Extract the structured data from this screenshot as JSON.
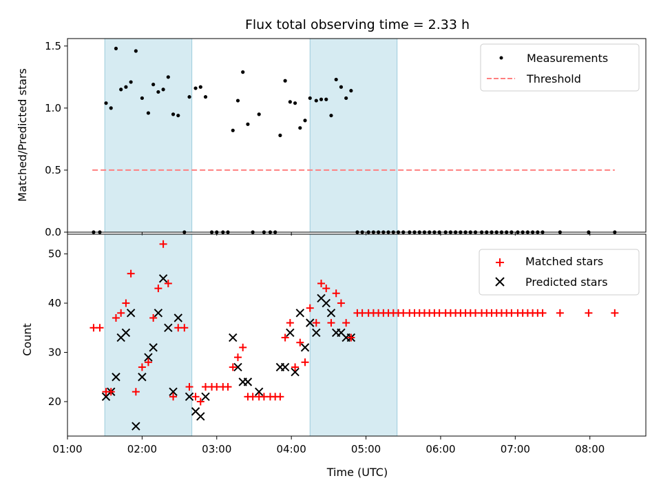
{
  "chart_data": [
    {
      "type": "scatter",
      "title": "Flux total observing time = 2.33 h",
      "ylabel": "Matched/Predicted stars",
      "ylim": [
        0,
        1.56
      ],
      "yticks": [
        0.0,
        0.5,
        1.0,
        1.5
      ],
      "ytick_labels": [
        "0.0",
        "0.5",
        "1.0",
        "1.5"
      ],
      "legend_placement": "top-right",
      "shaded_intervals": [
        [
          "01:30",
          "02:40"
        ],
        [
          "04:15",
          "05:25"
        ]
      ],
      "series": [
        {
          "name": "Measurements",
          "marker": "dot",
          "color": "#000000",
          "points": [
            [
              "01:21",
              0.0
            ],
            [
              "01:26",
              0.0
            ],
            [
              "01:31",
              1.04
            ],
            [
              "01:35",
              1.0
            ],
            [
              "01:39",
              1.48
            ],
            [
              "01:43",
              1.15
            ],
            [
              "01:47",
              1.17
            ],
            [
              "01:51",
              1.21
            ],
            [
              "01:55",
              1.46
            ],
            [
              "02:00",
              1.08
            ],
            [
              "02:05",
              0.96
            ],
            [
              "02:09",
              1.19
            ],
            [
              "02:13",
              1.13
            ],
            [
              "02:17",
              1.15
            ],
            [
              "02:21",
              1.25
            ],
            [
              "02:25",
              0.95
            ],
            [
              "02:29",
              0.94
            ],
            [
              "02:34",
              0.0
            ],
            [
              "02:38",
              1.09
            ],
            [
              "02:43",
              1.16
            ],
            [
              "02:47",
              1.17
            ],
            [
              "02:51",
              1.09
            ],
            [
              "02:56",
              0.0
            ],
            [
              "03:00",
              0.0
            ],
            [
              "03:05",
              0.0
            ],
            [
              "03:09",
              0.0
            ],
            [
              "03:13",
              0.82
            ],
            [
              "03:17",
              1.06
            ],
            [
              "03:21",
              1.29
            ],
            [
              "03:25",
              0.87
            ],
            [
              "03:29",
              0.0
            ],
            [
              "03:34",
              0.95
            ],
            [
              "03:38",
              0.0
            ],
            [
              "03:43",
              0.0
            ],
            [
              "03:47",
              0.0
            ],
            [
              "03:51",
              0.78
            ],
            [
              "03:55",
              1.22
            ],
            [
              "03:59",
              1.05
            ],
            [
              "04:03",
              1.04
            ],
            [
              "04:07",
              0.84
            ],
            [
              "04:11",
              0.9
            ],
            [
              "04:15",
              1.08
            ],
            [
              "04:20",
              1.06
            ],
            [
              "04:24",
              1.07
            ],
            [
              "04:28",
              1.07
            ],
            [
              "04:32",
              0.94
            ],
            [
              "04:36",
              1.23
            ],
            [
              "04:40",
              1.17
            ],
            [
              "04:44",
              1.08
            ],
            [
              "04:48",
              1.14
            ],
            [
              "04:53",
              0.0
            ],
            [
              "04:57",
              0.0
            ],
            [
              "05:02",
              0.0
            ],
            [
              "05:06",
              0.0
            ],
            [
              "05:10",
              0.0
            ],
            [
              "05:14",
              0.0
            ],
            [
              "05:18",
              0.0
            ],
            [
              "05:22",
              0.0
            ],
            [
              "05:26",
              0.0
            ],
            [
              "05:30",
              0.0
            ],
            [
              "05:35",
              0.0
            ],
            [
              "05:39",
              0.0
            ],
            [
              "05:43",
              0.0
            ],
            [
              "05:47",
              0.0
            ],
            [
              "05:51",
              0.0
            ],
            [
              "05:55",
              0.0
            ],
            [
              "05:59",
              0.0
            ],
            [
              "06:04",
              0.0
            ],
            [
              "06:08",
              0.0
            ],
            [
              "06:12",
              0.0
            ],
            [
              "06:16",
              0.0
            ],
            [
              "06:20",
              0.0
            ],
            [
              "06:24",
              0.0
            ],
            [
              "06:28",
              0.0
            ],
            [
              "06:33",
              0.0
            ],
            [
              "06:37",
              0.0
            ],
            [
              "06:41",
              0.0
            ],
            [
              "06:45",
              0.0
            ],
            [
              "06:49",
              0.0
            ],
            [
              "06:53",
              0.0
            ],
            [
              "06:57",
              0.0
            ],
            [
              "07:02",
              0.0
            ],
            [
              "07:06",
              0.0
            ],
            [
              "07:10",
              0.0
            ],
            [
              "07:14",
              0.0
            ],
            [
              "07:18",
              0.0
            ],
            [
              "07:22",
              0.0
            ],
            [
              "07:36",
              0.0
            ],
            [
              "07:59",
              0.0
            ],
            [
              "08:20",
              0.0
            ]
          ]
        },
        {
          "name": "Threshold",
          "type": "line",
          "style": "dashed",
          "color": "#ff7f7f",
          "points": [
            [
              "01:20",
              0.5
            ],
            [
              "08:20",
              0.5
            ]
          ]
        }
      ]
    },
    {
      "type": "scatter",
      "xlabel": "Time (UTC)",
      "ylabel": "Count",
      "ylim": [
        13,
        54
      ],
      "yticks": [
        20,
        30,
        40,
        50
      ],
      "ytick_labels": [
        "20",
        "30",
        "40",
        "50"
      ],
      "xlim": [
        "01:00",
        "08:45"
      ],
      "xticks": [
        "01:00",
        "02:00",
        "03:00",
        "04:00",
        "05:00",
        "06:00",
        "07:00",
        "08:00"
      ],
      "legend_placement": "top-right",
      "shaded_intervals": [
        [
          "01:30",
          "02:40"
        ],
        [
          "04:15",
          "05:25"
        ]
      ],
      "series": [
        {
          "name": "Matched stars",
          "marker": "plus",
          "color": "#ff0000",
          "points": [
            [
              "01:21",
              35
            ],
            [
              "01:26",
              35
            ],
            [
              "01:31",
              22
            ],
            [
              "01:35",
              22
            ],
            [
              "01:39",
              37
            ],
            [
              "01:43",
              38
            ],
            [
              "01:47",
              40
            ],
            [
              "01:51",
              46
            ],
            [
              "01:55",
              22
            ],
            [
              "02:00",
              27
            ],
            [
              "02:05",
              28
            ],
            [
              "02:09",
              37
            ],
            [
              "02:13",
              43
            ],
            [
              "02:17",
              52
            ],
            [
              "02:21",
              44
            ],
            [
              "02:25",
              21
            ],
            [
              "02:29",
              35
            ],
            [
              "02:34",
              35
            ],
            [
              "02:38",
              23
            ],
            [
              "02:43",
              21
            ],
            [
              "02:47",
              20
            ],
            [
              "02:51",
              23
            ],
            [
              "02:56",
              23
            ],
            [
              "03:00",
              23
            ],
            [
              "03:05",
              23
            ],
            [
              "03:09",
              23
            ],
            [
              "03:13",
              27
            ],
            [
              "03:17",
              29
            ],
            [
              "03:21",
              31
            ],
            [
              "03:25",
              21
            ],
            [
              "03:29",
              21
            ],
            [
              "03:34",
              21
            ],
            [
              "03:38",
              21
            ],
            [
              "03:43",
              21
            ],
            [
              "03:47",
              21
            ],
            [
              "03:51",
              21
            ],
            [
              "03:55",
              33
            ],
            [
              "03:59",
              36
            ],
            [
              "04:03",
              27
            ],
            [
              "04:07",
              32
            ],
            [
              "04:11",
              28
            ],
            [
              "04:15",
              39
            ],
            [
              "04:20",
              36
            ],
            [
              "04:24",
              44
            ],
            [
              "04:28",
              43
            ],
            [
              "04:32",
              36
            ],
            [
              "04:36",
              42
            ],
            [
              "04:40",
              40
            ],
            [
              "04:44",
              36
            ],
            [
              "04:48",
              33
            ],
            [
              "04:53",
              38
            ],
            [
              "04:57",
              38
            ],
            [
              "05:02",
              38
            ],
            [
              "05:06",
              38
            ],
            [
              "05:10",
              38
            ],
            [
              "05:14",
              38
            ],
            [
              "05:18",
              38
            ],
            [
              "05:22",
              38
            ],
            [
              "05:26",
              38
            ],
            [
              "05:30",
              38
            ],
            [
              "05:35",
              38
            ],
            [
              "05:39",
              38
            ],
            [
              "05:43",
              38
            ],
            [
              "05:47",
              38
            ],
            [
              "05:51",
              38
            ],
            [
              "05:55",
              38
            ],
            [
              "05:59",
              38
            ],
            [
              "06:04",
              38
            ],
            [
              "06:08",
              38
            ],
            [
              "06:12",
              38
            ],
            [
              "06:16",
              38
            ],
            [
              "06:20",
              38
            ],
            [
              "06:24",
              38
            ],
            [
              "06:28",
              38
            ],
            [
              "06:33",
              38
            ],
            [
              "06:37",
              38
            ],
            [
              "06:41",
              38
            ],
            [
              "06:45",
              38
            ],
            [
              "06:49",
              38
            ],
            [
              "06:53",
              38
            ],
            [
              "06:57",
              38
            ],
            [
              "07:02",
              38
            ],
            [
              "07:06",
              38
            ],
            [
              "07:10",
              38
            ],
            [
              "07:14",
              38
            ],
            [
              "07:18",
              38
            ],
            [
              "07:22",
              38
            ],
            [
              "07:36",
              38
            ],
            [
              "07:59",
              38
            ],
            [
              "08:20",
              38
            ]
          ]
        },
        {
          "name": "Predicted stars",
          "marker": "x",
          "color": "#000000",
          "points": [
            [
              "01:31",
              21
            ],
            [
              "01:35",
              22
            ],
            [
              "01:39",
              25
            ],
            [
              "01:43",
              33
            ],
            [
              "01:47",
              34
            ],
            [
              "01:51",
              38
            ],
            [
              "01:55",
              15
            ],
            [
              "02:00",
              25
            ],
            [
              "02:05",
              29
            ],
            [
              "02:09",
              31
            ],
            [
              "02:13",
              38
            ],
            [
              "02:17",
              45
            ],
            [
              "02:21",
              35
            ],
            [
              "02:25",
              22
            ],
            [
              "02:29",
              37
            ],
            [
              "02:38",
              21
            ],
            [
              "02:43",
              18
            ],
            [
              "02:47",
              17
            ],
            [
              "02:51",
              21
            ],
            [
              "03:13",
              33
            ],
            [
              "03:17",
              27
            ],
            [
              "03:21",
              24
            ],
            [
              "03:25",
              24
            ],
            [
              "03:34",
              22
            ],
            [
              "03:51",
              27
            ],
            [
              "03:55",
              27
            ],
            [
              "03:59",
              34
            ],
            [
              "04:03",
              26
            ],
            [
              "04:07",
              38
            ],
            [
              "04:11",
              31
            ],
            [
              "04:15",
              36
            ],
            [
              "04:20",
              34
            ],
            [
              "04:24",
              41
            ],
            [
              "04:28",
              40
            ],
            [
              "04:32",
              38
            ],
            [
              "04:36",
              34
            ],
            [
              "04:40",
              34
            ],
            [
              "04:44",
              33
            ],
            [
              "04:48",
              33
            ]
          ]
        }
      ]
    }
  ]
}
